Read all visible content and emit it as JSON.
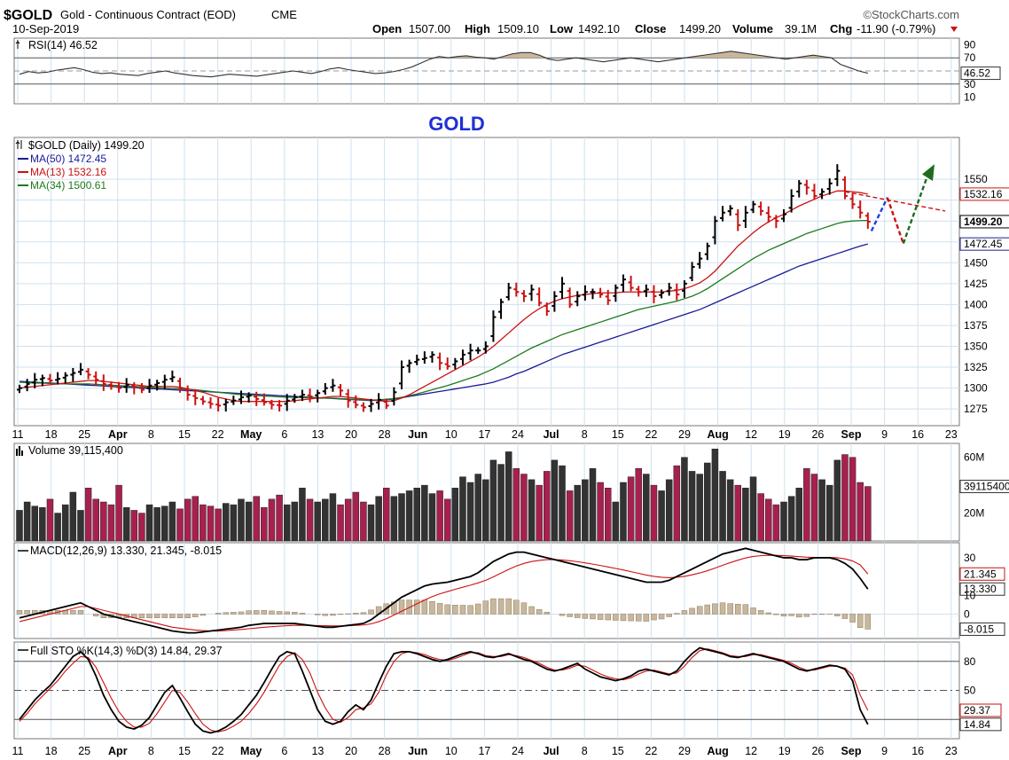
{
  "header": {
    "symbol": "$GOLD",
    "description": "Gold - Continuous Contract (EOD)",
    "exchange": "CME",
    "date": "10-Sep-2019",
    "brand": "©StockCharts.com",
    "open_label": "Open",
    "open": "1507.00",
    "high_label": "High",
    "high": "1509.10",
    "low_label": "Low",
    "low": "1492.10",
    "close_label": "Close",
    "close": "1499.20",
    "volume_label": "Volume",
    "volume": "39.1M",
    "chg_label": "Chg",
    "chg": "-11.90 (-0.79%)"
  },
  "overlay_title": "GOLD",
  "x_labels": [
    "11",
    "18",
    "25",
    "Apr",
    "8",
    "15",
    "22",
    "May",
    "6",
    "13",
    "20",
    "28",
    "Jun",
    "10",
    "17",
    "24",
    "Jul",
    "8",
    "15",
    "22",
    "29",
    "Aug",
    "12",
    "19",
    "26",
    "Sep",
    "9",
    "16",
    "23"
  ],
  "colors": {
    "up": "#000000",
    "down": "#cc1111",
    "ma50": "#1a1a99",
    "ma13": "#cc1111",
    "ma34": "#1e7a1e",
    "vol_up": "#333333",
    "vol_down": "#a8204f",
    "blue_arrow": "#1f3fe0",
    "red_arrow": "#cc1111",
    "green_arrow": "#1e6b1e",
    "title_blue": "#1f2fd6"
  },
  "chart_data": [
    {
      "panel": "rsi",
      "type": "line",
      "title": "RSI(14) 46.52",
      "ylim": [
        0,
        100
      ],
      "y_ticks": [
        10,
        30,
        46.52,
        70,
        90
      ],
      "y_tick_labels": [
        "10",
        "30",
        "46.52",
        "70",
        "90"
      ],
      "reference_lines": [
        30,
        70
      ],
      "series": [
        {
          "values": [
            45,
            49,
            47,
            48,
            51,
            53,
            55,
            52,
            48,
            46,
            47,
            45,
            44,
            43,
            46,
            48,
            50,
            47,
            45,
            43,
            42,
            41,
            43,
            45,
            44,
            43,
            42,
            44,
            46,
            48,
            50,
            48,
            46,
            49,
            53,
            55,
            52,
            50,
            48,
            46,
            47,
            49,
            52,
            56,
            62,
            68,
            72,
            70,
            72,
            73,
            71,
            70,
            68,
            72,
            76,
            78,
            78,
            74,
            68,
            66,
            68,
            70,
            68,
            66,
            64,
            66,
            68,
            70,
            68,
            66,
            64,
            66,
            68,
            70,
            72,
            74,
            76,
            78,
            80,
            78,
            76,
            74,
            72,
            70,
            68,
            70,
            72,
            74,
            72,
            70,
            60,
            55,
            50,
            46.52
          ]
        }
      ]
    },
    {
      "panel": "price",
      "type": "ohlc",
      "title": "$GOLD (Daily) 1499.20",
      "legend": [
        "MA(50) 1472.45",
        "MA(13) 1532.16",
        "MA(34) 1500.61"
      ],
      "ylim": [
        1255,
        1600
      ],
      "y_ticks": [
        1275,
        1300,
        1325,
        1350,
        1375,
        1400,
        1425,
        1450,
        1475,
        1500,
        1525,
        1550
      ],
      "y_tick_labels": [
        "1275",
        "1300",
        "1325",
        "1350",
        "1375",
        "1400",
        "1425",
        "1450",
        "1475",
        "1500",
        "1525",
        "1550"
      ],
      "last_value_labels": [
        "1532.16",
        "1499.20",
        "1472.45"
      ],
      "close": [
        1300,
        1305,
        1310,
        1312,
        1309,
        1311,
        1315,
        1318,
        1322,
        1316,
        1310,
        1305,
        1302,
        1300,
        1304,
        1301,
        1298,
        1303,
        1306,
        1310,
        1313,
        1300,
        1292,
        1288,
        1284,
        1281,
        1279,
        1283,
        1285,
        1289,
        1291,
        1287,
        1283,
        1280,
        1279,
        1285,
        1289,
        1292,
        1290,
        1294,
        1300,
        1303,
        1297,
        1285,
        1280,
        1277,
        1281,
        1286,
        1279,
        1295,
        1325,
        1330,
        1334,
        1336,
        1340,
        1330,
        1326,
        1332,
        1340,
        1345,
        1345,
        1350,
        1385,
        1403,
        1420,
        1415,
        1410,
        1418,
        1402,
        1392,
        1410,
        1425,
        1400,
        1410,
        1415,
        1415,
        1412,
        1405,
        1420,
        1430,
        1420,
        1415,
        1418,
        1410,
        1414,
        1420,
        1412,
        1425,
        1445,
        1455,
        1470,
        1500,
        1510,
        1515,
        1495,
        1510,
        1520,
        1512,
        1505,
        1500,
        1508,
        1530,
        1545,
        1540,
        1530,
        1535,
        1545,
        1560,
        1530,
        1520,
        1510,
        1499.2
      ],
      "ma50": [
        1308,
        1307.5,
        1307,
        1306.5,
        1306,
        1305.5,
        1305,
        1304.5,
        1304,
        1303.5,
        1303,
        1302.5,
        1302,
        1301.5,
        1301,
        1300.5,
        1300,
        1299.5,
        1299,
        1298.5,
        1298,
        1297.5,
        1297,
        1296.5,
        1296,
        1295.5,
        1295,
        1294.5,
        1294,
        1293.5,
        1293,
        1292.5,
        1292,
        1291.5,
        1291,
        1290.5,
        1290,
        1289.5,
        1289,
        1288.5,
        1288,
        1287.5,
        1287,
        1286.5,
        1286,
        1285.5,
        1285,
        1285.5,
        1286,
        1287,
        1288.5,
        1290,
        1291.5,
        1293,
        1294.5,
        1296,
        1297.5,
        1299,
        1300.5,
        1302,
        1303.5,
        1305,
        1307,
        1310,
        1313,
        1317,
        1320,
        1324,
        1328,
        1332,
        1336,
        1340,
        1343,
        1346,
        1349,
        1352,
        1355,
        1358,
        1361,
        1364,
        1367,
        1370,
        1373,
        1376,
        1379,
        1382,
        1385,
        1388,
        1391,
        1394,
        1398,
        1402,
        1406,
        1410,
        1414,
        1418,
        1422,
        1426,
        1430,
        1434,
        1438,
        1442,
        1446,
        1449,
        1452,
        1455,
        1458,
        1461,
        1464,
        1467,
        1470,
        1472.45
      ],
      "ma13": [
        1300,
        1301,
        1302,
        1303,
        1304,
        1305,
        1306,
        1307,
        1308,
        1309,
        1309,
        1308,
        1307,
        1306,
        1305,
        1304,
        1303,
        1302,
        1302,
        1302,
        1302,
        1301,
        1299,
        1297,
        1295,
        1292,
        1289,
        1287,
        1285,
        1284,
        1284,
        1284,
        1284,
        1284,
        1284,
        1284,
        1285,
        1286,
        1287,
        1288,
        1289,
        1290,
        1290,
        1289,
        1288,
        1287,
        1286,
        1285,
        1284,
        1285,
        1288,
        1292,
        1297,
        1302,
        1307,
        1312,
        1317,
        1322,
        1327,
        1332,
        1337,
        1343,
        1350,
        1358,
        1366,
        1374,
        1382,
        1389,
        1395,
        1400,
        1404,
        1407,
        1409,
        1411,
        1412,
        1413,
        1414,
        1414,
        1414,
        1415,
        1415,
        1415,
        1415,
        1415,
        1415,
        1416,
        1417,
        1419,
        1422,
        1426,
        1432,
        1440,
        1450,
        1460,
        1470,
        1478,
        1486,
        1493,
        1499,
        1504,
        1508,
        1513,
        1518,
        1522,
        1526,
        1530,
        1533,
        1536,
        1536,
        1535,
        1534,
        1532.16
      ],
      "ma34": [
        1307,
        1306.5,
        1306,
        1306,
        1305.5,
        1305,
        1305,
        1305,
        1305,
        1305,
        1304.5,
        1304,
        1303.5,
        1303,
        1302.5,
        1302,
        1301.5,
        1301,
        1300.5,
        1300,
        1299.5,
        1299,
        1298.5,
        1298,
        1297,
        1296,
        1295,
        1294,
        1293,
        1292,
        1291.5,
        1291,
        1290.5,
        1290,
        1289.5,
        1289,
        1289,
        1288.5,
        1288.5,
        1288,
        1288,
        1288,
        1287.5,
        1287,
        1286.5,
        1286,
        1285.5,
        1286,
        1286.5,
        1287.5,
        1289,
        1291,
        1293,
        1295.5,
        1298,
        1300.5,
        1303,
        1306,
        1309,
        1312,
        1315,
        1319,
        1323,
        1328,
        1333,
        1338,
        1343,
        1348,
        1352,
        1356,
        1360,
        1364,
        1367,
        1370,
        1373,
        1376,
        1379,
        1382,
        1385,
        1388,
        1391,
        1394,
        1396,
        1398,
        1400,
        1402,
        1404,
        1407,
        1410,
        1414,
        1419,
        1425,
        1431,
        1437,
        1443,
        1449,
        1455,
        1460,
        1465,
        1469,
        1473,
        1477,
        1481,
        1485,
        1488,
        1491,
        1494,
        1497,
        1499,
        1500,
        1500.5,
        1500.61
      ]
    },
    {
      "panel": "volume",
      "type": "bar",
      "title": "Volume 39,115,400",
      "y_tick_labels": [
        "60M",
        "39115400",
        "20M"
      ],
      "values": [
        22,
        28,
        25,
        24,
        30,
        20,
        26,
        35,
        22,
        38,
        30,
        28,
        26,
        40,
        24,
        22,
        20,
        26,
        24,
        25,
        28,
        23,
        30,
        32,
        26,
        25,
        23,
        27,
        26,
        30,
        28,
        32,
        24,
        30,
        33,
        26,
        28,
        38,
        30,
        28,
        30,
        34,
        26,
        30,
        35,
        28,
        26,
        32,
        38,
        32,
        34,
        36,
        38,
        40,
        34,
        36,
        30,
        38,
        46,
        42,
        48,
        44,
        58,
        55,
        64,
        52,
        48,
        44,
        40,
        50,
        58,
        54,
        36,
        40,
        44,
        52,
        42,
        38,
        28,
        42,
        46,
        52,
        48,
        40,
        36,
        44,
        54,
        60,
        50,
        48,
        56,
        66,
        50,
        44,
        40,
        38,
        46,
        34,
        30,
        26,
        28,
        32,
        38,
        52,
        48,
        44,
        40,
        58,
        62,
        60,
        42,
        39.1
      ]
    },
    {
      "panel": "macd",
      "type": "line",
      "title": "MACD(12,26,9) 13.330, 21.345, -8.015",
      "legend": [
        "13.330",
        "21.345",
        "-8.015"
      ],
      "y_tick_labels": [
        "30",
        "21.345",
        "13.330",
        "10",
        "0",
        "-8.015"
      ],
      "macd": [
        -2,
        -1,
        0,
        1,
        2,
        3,
        4,
        5,
        6,
        4,
        2,
        0,
        -1,
        -2,
        -3,
        -4,
        -5,
        -6,
        -7,
        -8,
        -9,
        -9.5,
        -10,
        -10,
        -9.5,
        -9,
        -8.5,
        -8,
        -7.5,
        -7,
        -6,
        -5.5,
        -5,
        -5,
        -5,
        -5,
        -5,
        -5.5,
        -6,
        -6.5,
        -7,
        -7,
        -6.5,
        -6,
        -5.5,
        -5,
        -3,
        0,
        3,
        6,
        9,
        11,
        13,
        15,
        16,
        16.5,
        17,
        18,
        19,
        20,
        22,
        25,
        28,
        30,
        32,
        33,
        33,
        32,
        31,
        30,
        29,
        28,
        27,
        26,
        25,
        24,
        23,
        22,
        21,
        20,
        19,
        18,
        17,
        17,
        17,
        18,
        20,
        22,
        24,
        26,
        28,
        30,
        32,
        33,
        34,
        35,
        34,
        33,
        32,
        31,
        30,
        30,
        29,
        29,
        30,
        30,
        30,
        29,
        27,
        24,
        19,
        13.33
      ],
      "signal": [
        -4,
        -3,
        -2,
        -1,
        0,
        1,
        2,
        3,
        4,
        4,
        3,
        2,
        1,
        0,
        -1,
        -2,
        -3,
        -4,
        -5,
        -6,
        -7,
        -7.5,
        -8,
        -8.5,
        -8.8,
        -9,
        -9,
        -8.8,
        -8.5,
        -8.2,
        -7.8,
        -7.4,
        -7,
        -6.7,
        -6.4,
        -6.2,
        -6,
        -6,
        -6,
        -6.1,
        -6.2,
        -6.3,
        -6.3,
        -6.2,
        -6,
        -5.8,
        -5.2,
        -4,
        -2.5,
        -0.5,
        1.5,
        3.5,
        5.5,
        7.5,
        9.3,
        10.8,
        12,
        13.2,
        14.3,
        15.4,
        16.6,
        18,
        19.8,
        21.8,
        23.8,
        25.6,
        27,
        28,
        28.6,
        29,
        29,
        28.8,
        28.4,
        27.9,
        27.3,
        26.6,
        25.9,
        25.1,
        24.3,
        23.5,
        22.6,
        21.7,
        20.8,
        20.1,
        19.6,
        19.4,
        19.6,
        20.1,
        20.9,
        21.9,
        23.1,
        24.5,
        26,
        27.4,
        28.7,
        29.9,
        30.7,
        31.1,
        31.3,
        31.3,
        31.1,
        30.9,
        30.6,
        30.3,
        30.2,
        30.2,
        30.1,
        30,
        29.4,
        28.3,
        26.2,
        21.345
      ],
      "histogram": [
        2,
        2,
        2,
        2,
        2,
        2,
        2,
        2,
        2,
        0,
        -1,
        -2,
        -2,
        -2,
        -2,
        -2,
        -2,
        -2,
        -2,
        -2,
        -2,
        -2,
        -2,
        -1.5,
        -0.7,
        0,
        0.5,
        0.8,
        1,
        1.2,
        1.8,
        1.9,
        2,
        1.7,
        1.4,
        1.2,
        1,
        0.5,
        0,
        -0.4,
        -0.8,
        -0.7,
        -0.2,
        0.2,
        0.5,
        0.8,
        2.2,
        4,
        5.5,
        6.5,
        7.5,
        7.5,
        7.5,
        7.5,
        6.7,
        5.7,
        5,
        4.8,
        4.7,
        4.6,
        5.4,
        7,
        8.2,
        8.2,
        8.2,
        7.4,
        6,
        4,
        2.4,
        1,
        0,
        -0.8,
        -1.4,
        -1.9,
        -2.3,
        -2.6,
        -2.9,
        -3.1,
        -3.3,
        -3.5,
        -3.6,
        -3.7,
        -3.8,
        -3.1,
        -2.6,
        -1.4,
        0.4,
        1.9,
        3.1,
        4.1,
        4.9,
        5.5,
        6,
        5.6,
        5.3,
        5.1,
        3.3,
        1.9,
        0.7,
        -0.3,
        -1.1,
        -0.9,
        -1.6,
        -1.3,
        -0.2,
        -0.2,
        -0.1,
        -1,
        -2.4,
        -4.3,
        -7.2,
        -8.015
      ]
    },
    {
      "panel": "stochastic",
      "type": "line",
      "title": "Full STO %K(14,3) %D(3) 14.84, 29.37",
      "legend": [
        "14.84",
        "29.37"
      ],
      "ylim": [
        0,
        100
      ],
      "y_tick_labels": [
        "80",
        "50",
        "29.37",
        "14.84"
      ],
      "reference_lines": [
        20,
        50,
        80
      ],
      "k": [
        20,
        30,
        40,
        48,
        55,
        65,
        75,
        85,
        90,
        82,
        65,
        45,
        30,
        18,
        12,
        10,
        14,
        22,
        35,
        48,
        55,
        42,
        28,
        15,
        8,
        6,
        8,
        12,
        18,
        25,
        35,
        45,
        58,
        72,
        85,
        90,
        88,
        70,
        50,
        30,
        18,
        15,
        18,
        28,
        35,
        30,
        40,
        58,
        75,
        88,
        90,
        90,
        88,
        85,
        82,
        80,
        82,
        85,
        88,
        90,
        88,
        85,
        84,
        86,
        88,
        85,
        82,
        80,
        76,
        72,
        70,
        72,
        75,
        78,
        72,
        68,
        64,
        62,
        60,
        62,
        65,
        70,
        72,
        70,
        68,
        66,
        70,
        80,
        88,
        94,
        92,
        90,
        88,
        85,
        84,
        86,
        88,
        86,
        84,
        82,
        80,
        76,
        72,
        70,
        72,
        74,
        76,
        75,
        72,
        60,
        30,
        14.84
      ],
      "d": [
        18,
        26,
        36,
        44,
        52,
        60,
        70,
        78,
        85,
        84,
        74,
        58,
        42,
        28,
        18,
        12,
        12,
        16,
        26,
        38,
        50,
        48,
        38,
        26,
        15,
        9,
        7,
        9,
        13,
        18,
        26,
        36,
        48,
        62,
        76,
        85,
        89,
        82,
        68,
        48,
        32,
        20,
        17,
        22,
        30,
        32,
        36,
        48,
        66,
        80,
        88,
        90,
        89,
        87,
        84,
        82,
        81,
        83,
        86,
        89,
        89,
        86,
        85,
        85,
        87,
        86,
        84,
        81,
        78,
        74,
        71,
        71,
        73,
        76,
        75,
        71,
        67,
        64,
        62,
        61,
        63,
        67,
        70,
        71,
        69,
        67,
        68,
        75,
        84,
        91,
        93,
        91,
        89,
        86,
        85,
        85,
        87,
        87,
        85,
        83,
        81,
        78,
        74,
        71,
        71,
        73,
        75,
        75,
        73,
        66,
        45,
        29.37
      ]
    }
  ]
}
